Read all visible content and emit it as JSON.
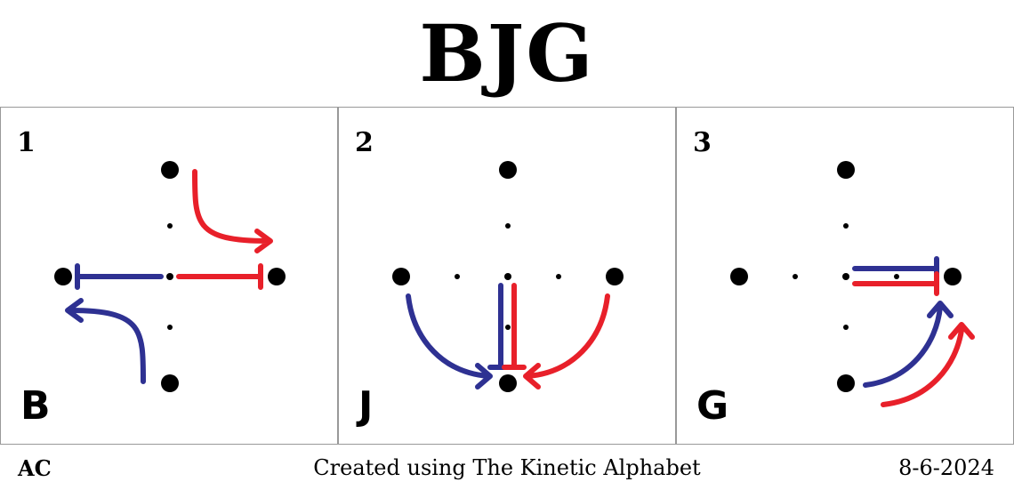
{
  "title": "BJG",
  "colors": {
    "blue": "#2e3192",
    "red": "#e8202a",
    "dot": "#000000",
    "border": "#999999"
  },
  "panels": [
    {
      "number": "1",
      "letter": "B"
    },
    {
      "number": "2",
      "letter": "J"
    },
    {
      "number": "3",
      "letter": "G"
    }
  ],
  "footer": {
    "left": "AC",
    "center": "Created using The Kinetic Alphabet",
    "right": "8-6-2024"
  }
}
